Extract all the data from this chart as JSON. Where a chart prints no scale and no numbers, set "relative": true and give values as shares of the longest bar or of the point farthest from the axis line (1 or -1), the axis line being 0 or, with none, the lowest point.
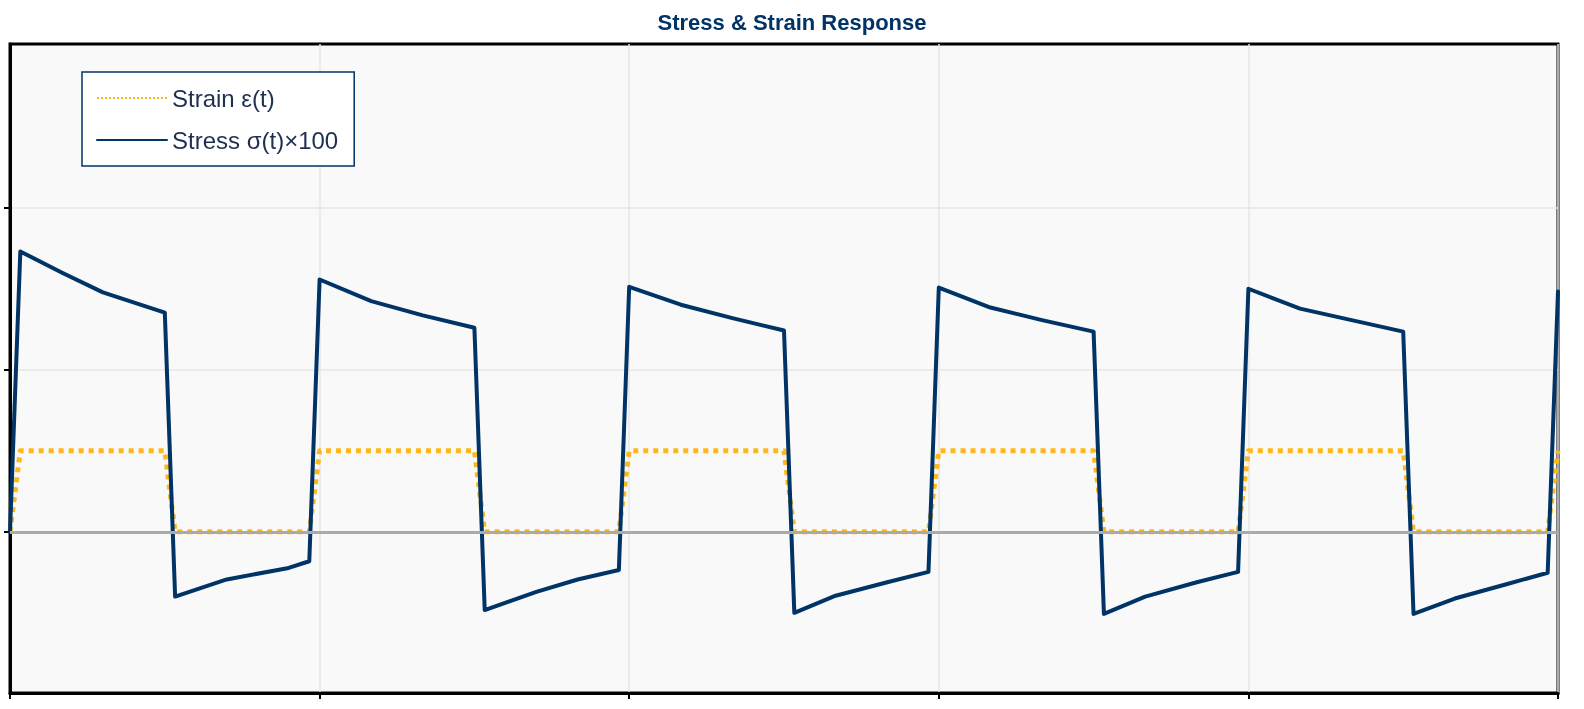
{
  "chart_data": {
    "type": "line",
    "title": "Stress & Strain Response",
    "relative": true,
    "grid": true,
    "legend": "top left",
    "marker": "none",
    "categories": [
      null,
      null,
      null,
      null,
      null,
      null,
      null,
      null,
      null,
      null,
      null,
      null,
      null,
      null,
      null,
      null,
      null,
      null,
      null,
      null,
      null,
      null,
      null,
      null,
      null,
      null,
      null,
      null,
      null,
      null,
      null,
      null,
      null,
      null,
      null,
      null,
      null,
      null,
      null,
      null,
      null,
      null,
      null,
      null,
      null,
      null,
      null,
      null,
      null,
      null,
      null,
      null,
      null,
      null,
      null,
      null,
      null,
      null,
      null,
      null,
      null,
      null,
      null,
      null,
      null,
      null,
      null,
      null,
      null,
      null,
      null,
      null,
      null,
      null,
      null,
      null,
      null,
      null,
      null,
      null,
      null,
      null,
      null,
      null,
      null,
      null,
      null,
      null,
      null,
      null,
      null,
      null,
      null,
      null,
      null,
      null,
      null,
      null,
      null,
      null,
      null,
      null,
      null,
      null,
      null,
      null,
      null,
      null,
      null,
      null,
      null,
      null,
      null,
      null,
      null,
      null,
      null,
      null,
      null,
      null,
      null,
      null,
      null,
      null,
      null,
      null,
      null,
      null,
      null,
      null,
      null,
      null,
      null,
      null,
      null,
      null,
      null,
      null,
      null,
      null,
      null,
      null,
      null,
      null,
      null,
      null,
      null,
      null,
      null,
      null,
      null
    ],
    "series": [
      {
        "name": "Strain ε(t)",
        "color": "#ffb81c",
        "line_style": "dotted",
        "values": [
          0,
          0.289,
          null,
          null,
          null,
          null,
          null,
          null,
          null,
          null,
          null,
          null,
          null,
          null,
          null,
          0.289,
          0,
          null,
          null,
          null,
          null,
          null,
          null,
          null,
          null,
          null,
          null,
          null,
          null,
          0,
          0.289,
          null,
          null,
          null,
          null,
          null,
          null,
          null,
          null,
          null,
          null,
          null,
          null,
          null,
          null,
          0.289,
          0,
          null,
          null,
          null,
          null,
          null,
          null,
          null,
          null,
          null,
          null,
          null,
          null,
          0,
          0.289,
          null,
          null,
          null,
          null,
          null,
          null,
          null,
          null,
          null,
          null,
          null,
          null,
          null,
          null,
          0.289,
          0,
          null,
          null,
          null,
          null,
          null,
          null,
          null,
          null,
          null,
          null,
          null,
          null,
          0,
          0.289,
          null,
          null,
          null,
          null,
          null,
          null,
          null,
          null,
          null,
          null,
          null,
          null,
          null,
          null,
          0.289,
          0,
          null,
          null,
          null,
          null,
          null,
          null,
          null,
          null,
          null,
          null,
          null,
          null,
          0,
          0.289,
          null,
          null,
          null,
          null,
          null,
          null,
          null,
          null,
          null,
          null,
          null,
          null,
          null,
          null,
          0.289,
          0,
          null,
          null,
          null,
          null,
          null,
          null,
          null,
          null,
          null,
          null,
          null,
          null,
          0,
          0.289
        ]
      },
      {
        "name": "Stress σ(t)×100",
        "color": "#003366",
        "line_style": "solid",
        "values": [
          0,
          1.0,
          null,
          null,
          null,
          0.925,
          null,
          null,
          null,
          0.854,
          null,
          null,
          null,
          null,
          null,
          0.782,
          -0.231,
          null,
          null,
          null,
          null,
          -0.17,
          null,
          null,
          null,
          null,
          null,
          -0.129,
          null,
          -0.105,
          0.9,
          null,
          null,
          null,
          null,
          0.823,
          null,
          null,
          null,
          null,
          0.772,
          null,
          null,
          null,
          null,
          0.728,
          -0.279,
          null,
          null,
          null,
          null,
          -0.214,
          null,
          null,
          null,
          -0.17,
          null,
          null,
          null,
          -0.136,
          0.874,
          null,
          null,
          null,
          null,
          0.81,
          null,
          null,
          null,
          null,
          0.762,
          null,
          null,
          null,
          null,
          0.718,
          -0.289,
          null,
          null,
          null,
          -0.228,
          null,
          null,
          null,
          null,
          -0.18,
          null,
          null,
          null,
          -0.143,
          0.871,
          null,
          null,
          null,
          null,
          0.8,
          null,
          null,
          null,
          null,
          0.755,
          null,
          null,
          null,
          null,
          0.714,
          -0.293,
          null,
          null,
          null,
          -0.231,
          null,
          null,
          null,
          null,
          -0.18,
          null,
          null,
          null,
          -0.143,
          0.867,
          null,
          null,
          null,
          null,
          0.796,
          null,
          null,
          null,
          null,
          0.755,
          null,
          null,
          null,
          null,
          0.714,
          -0.293,
          null,
          null,
          null,
          -0.238,
          null,
          null,
          null,
          null,
          -0.187,
          null,
          null,
          null,
          -0.146,
          0.857
        ]
      }
    ],
    "ref_lines": [
      {
        "axis": "y",
        "value": 0,
        "color": "#aaaaaa"
      }
    ]
  }
}
